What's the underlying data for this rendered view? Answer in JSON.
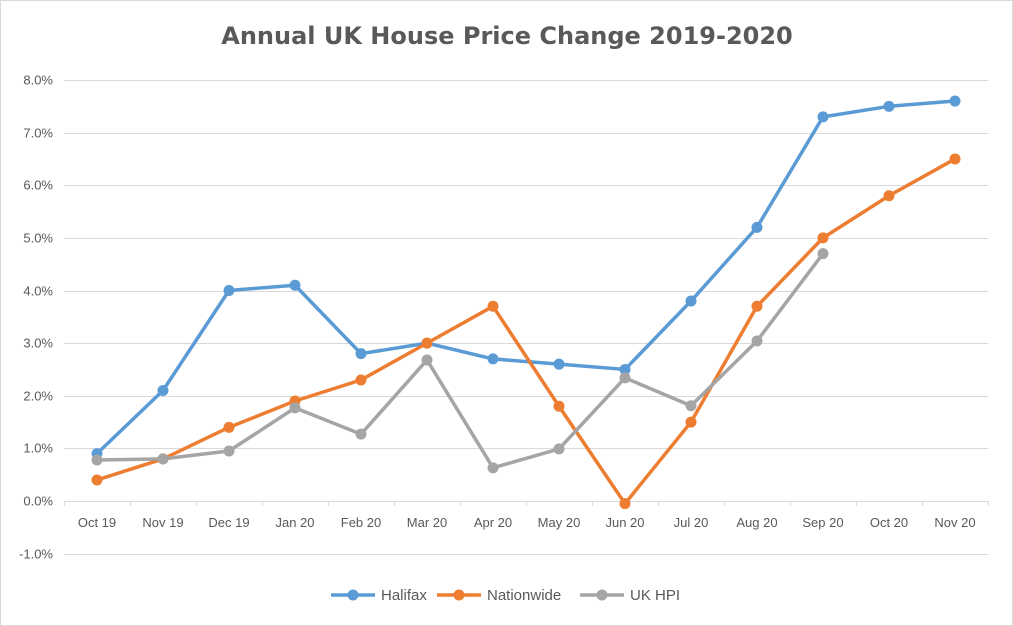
{
  "chart_data": {
    "type": "line",
    "title": "Annual UK House Price Change 2019-2020",
    "xlabel": "",
    "ylabel": "",
    "categories": [
      "Oct 19",
      "Nov 19",
      "Dec 19",
      "Jan 20",
      "Feb 20",
      "Mar 20",
      "Apr 20",
      "May 20",
      "Jun 20",
      "Jul 20",
      "Aug 20",
      "Sep 20",
      "Oct 20",
      "Nov 20"
    ],
    "ylim": [
      -1.0,
      8.0
    ],
    "yticks": [
      "-1.0%",
      "0.0%",
      "1.0%",
      "2.0%",
      "3.0%",
      "4.0%",
      "5.0%",
      "6.0%",
      "7.0%",
      "8.0%"
    ],
    "grid": true,
    "legend_position": "bottom",
    "series": [
      {
        "name": "Halifax",
        "color": "#5B9BD5",
        "values": [
          0.9,
          2.1,
          4.0,
          4.1,
          2.8,
          3.0,
          2.7,
          2.6,
          2.5,
          3.8,
          5.2,
          7.3,
          7.5,
          7.6
        ]
      },
      {
        "name": "Nationwide",
        "color": "#ED7D31",
        "values": [
          0.4,
          0.8,
          1.4,
          1.9,
          2.3,
          3.0,
          3.7,
          1.8,
          -0.05,
          1.5,
          3.7,
          5.0,
          5.8,
          6.5
        ]
      },
      {
        "name": "UK HPI",
        "color": "#A5A5A5",
        "values": [
          0.78,
          0.8,
          0.95,
          1.77,
          1.27,
          2.68,
          0.63,
          0.99,
          2.34,
          1.81,
          3.04,
          4.7,
          null,
          null
        ]
      }
    ]
  }
}
